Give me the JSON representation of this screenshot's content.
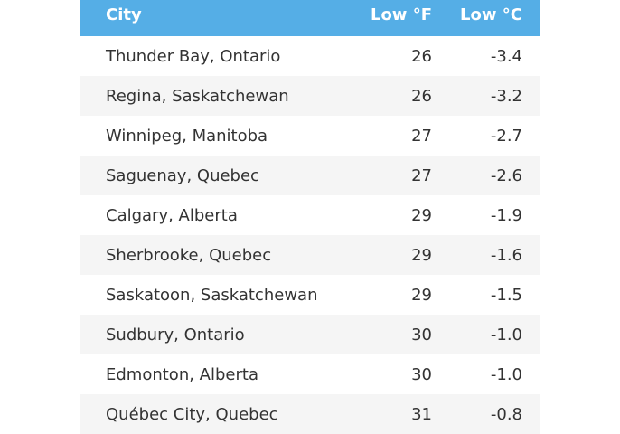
{
  "table": {
    "header": [
      "City",
      "Low °F",
      "Low °C"
    ],
    "rows": [
      [
        "Thunder Bay, Ontario",
        "26",
        "-3.4"
      ],
      [
        "Regina, Saskatchewan",
        "26",
        "-3.2"
      ],
      [
        "Winnipeg, Manitoba",
        "27",
        "-2.7"
      ],
      [
        "Saguenay, Quebec",
        "27",
        "-2.6"
      ],
      [
        "Calgary, Alberta",
        "29",
        "-1.9"
      ],
      [
        "Sherbrooke, Quebec",
        "29",
        "-1.6"
      ],
      [
        "Saskatoon, Saskatchewan",
        "29",
        "-1.5"
      ],
      [
        "Sudbury, Ontario",
        "30",
        "-1.0"
      ],
      [
        "Edmonton, Alberta",
        "30",
        "-1.0"
      ],
      [
        "Québec City, Quebec",
        "31",
        "-0.8"
      ]
    ]
  }
}
